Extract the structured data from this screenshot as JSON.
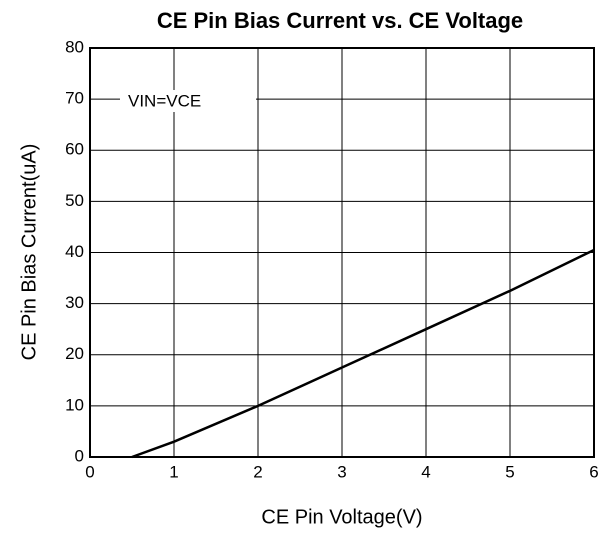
{
  "chart_data": {
    "type": "line",
    "title": "CE Pin Bias Current vs. CE Voltage",
    "x_label": "CE Pin Voltage(V)",
    "y_label": "CE Pin Bias Current(uA)",
    "annotation": "VIN=VCE",
    "x": [
      0.5,
      1,
      2,
      3,
      4,
      5,
      6
    ],
    "series": [
      {
        "name": "VIN=VCE",
        "color": "#000000",
        "values": [
          0,
          3,
          10,
          17.5,
          25,
          32.5,
          40.5
        ]
      }
    ],
    "xlim": [
      0,
      6
    ],
    "xticks": [
      0,
      1,
      2,
      3,
      4,
      5,
      6
    ],
    "ylim": [
      0,
      80
    ],
    "yticks": [
      0,
      10,
      20,
      30,
      40,
      50,
      60,
      70,
      80
    ],
    "grid": true
  }
}
